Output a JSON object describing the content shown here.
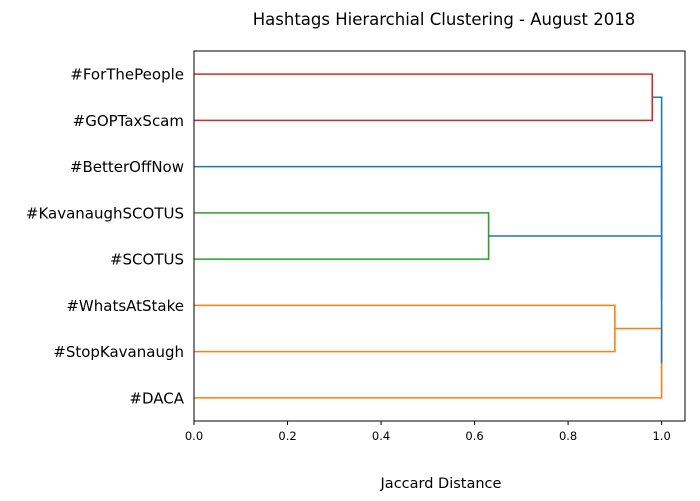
{
  "chart_data": {
    "type": "dendrogram",
    "title": "Hashtags Hierarchial Clustering - August 2018",
    "xlabel": "Jaccard Distance",
    "xlim": [
      0,
      1.05
    ],
    "x_ticks": [
      0.0,
      0.2,
      0.4,
      0.6,
      0.8,
      1.0
    ],
    "x_tick_labels": [
      "0.0",
      "0.2",
      "0.4",
      "0.6",
      "0.8",
      "1.0"
    ],
    "leaves": [
      "#ForThePeople",
      "#GOPTaxScam",
      "#BetterOffNow",
      "#KavanaughSCOTUS",
      "#SCOTUS",
      "#WhatsAtStake",
      "#StopKavanaugh",
      "#DACA"
    ],
    "links": [
      {
        "members": [
          "#ForThePeople",
          "#GOPTaxScam"
        ],
        "distance": 0.98,
        "color": "#d62728"
      },
      {
        "members": [
          "#KavanaughSCOTUS",
          "#SCOTUS"
        ],
        "distance": 0.63,
        "color": "#2ca02c"
      },
      {
        "members": [
          "#WhatsAtStake",
          "#StopKavanaugh"
        ],
        "distance": 0.9,
        "color": "#ff7f0e"
      },
      {
        "members": [
          "#WhatsAtStake",
          "#StopKavanaugh",
          "#DACA"
        ],
        "distance": 1.0,
        "color": "#ff7f0e"
      },
      {
        "members": [
          "#KavanaughSCOTUS",
          "#SCOTUS",
          "#WhatsAtStake",
          "#StopKavanaugh",
          "#DACA"
        ],
        "distance": 1.0,
        "color": "#1f77b4"
      },
      {
        "members": [
          "#BetterOffNow",
          "#KavanaughSCOTUS",
          "#SCOTUS",
          "#WhatsAtStake",
          "#StopKavanaugh",
          "#DACA"
        ],
        "distance": 1.0,
        "color": "#1f77b4"
      },
      {
        "members": [
          "#ForThePeople",
          "#GOPTaxScam",
          "#BetterOffNow",
          "#KavanaughSCOTUS",
          "#SCOTUS",
          "#WhatsAtStake",
          "#StopKavanaugh",
          "#DACA"
        ],
        "distance": 1.0,
        "color": "#1f77b4"
      }
    ],
    "colors": {
      "cluster_red": "#d62728",
      "cluster_green": "#2ca02c",
      "cluster_orange": "#ff7f0e",
      "above_threshold": "#1f77b4"
    }
  }
}
